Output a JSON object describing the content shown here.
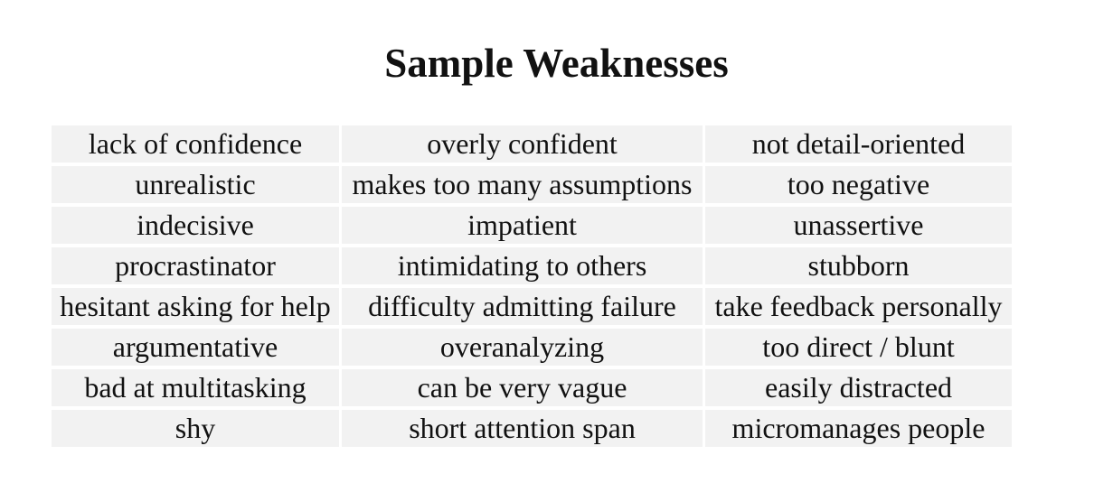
{
  "title": "Sample Weaknesses",
  "rows": [
    [
      "lack of confidence",
      "overly confident",
      "not detail-oriented"
    ],
    [
      "unrealistic",
      "makes too many assumptions",
      "too negative"
    ],
    [
      "indecisive",
      "impatient",
      "unassertive"
    ],
    [
      "procrastinator",
      "intimidating to others",
      "stubborn"
    ],
    [
      "hesitant asking for help",
      "difficulty admitting failure",
      "take feedback personally"
    ],
    [
      "argumentative",
      "overanalyzing",
      "too direct / blunt"
    ],
    [
      "bad at multitasking",
      "can be very vague",
      "easily distracted"
    ],
    [
      "shy",
      "short attention span",
      "micromanages people"
    ]
  ],
  "colors": {
    "cell_background": "#f2f2f2",
    "text": "#111111",
    "page_background": "#ffffff"
  }
}
